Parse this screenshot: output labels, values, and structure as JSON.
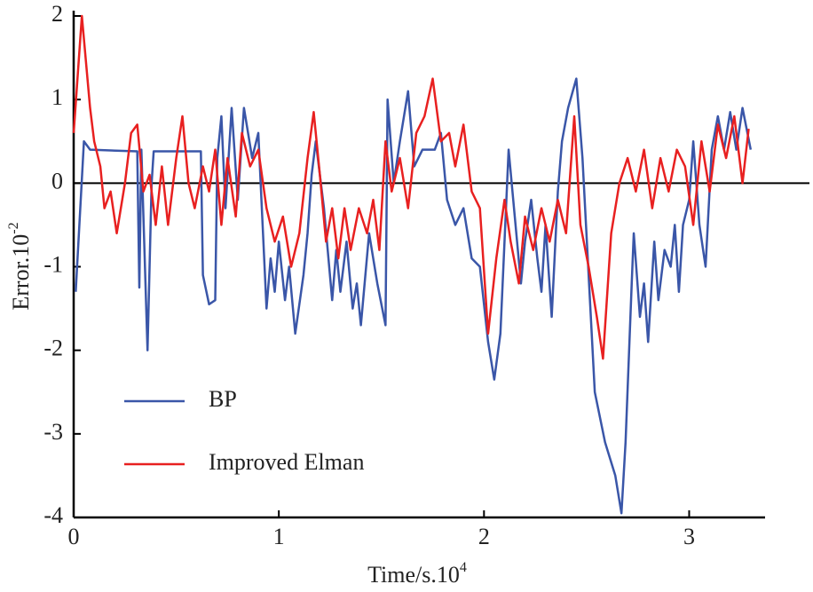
{
  "chart_data": {
    "type": "line",
    "xlabel": {
      "text": "Time/s.10",
      "exponent": "4"
    },
    "ylabel": {
      "text": "Error.10",
      "exponent": "-2"
    },
    "xlim": [
      0,
      3.37
    ],
    "ylim": [
      -4,
      2
    ],
    "xticks": [
      0,
      1,
      2,
      3
    ],
    "yticks": [
      -4,
      -3,
      -2,
      -1,
      0,
      1,
      2
    ],
    "zero_line": true,
    "grid": false,
    "legend": "lower left",
    "series": [
      {
        "name": "BP",
        "color": "#3a56a8",
        "x": [
          0.01,
          0.05,
          0.08,
          0.31,
          0.32,
          0.33,
          0.36,
          0.38,
          0.39,
          0.62,
          0.63,
          0.66,
          0.69,
          0.7,
          0.72,
          0.74,
          0.77,
          0.8,
          0.83,
          0.87,
          0.9,
          0.94,
          0.96,
          0.98,
          1.0,
          1.03,
          1.05,
          1.08,
          1.12,
          1.14,
          1.16,
          1.18,
          1.22,
          1.26,
          1.28,
          1.3,
          1.33,
          1.36,
          1.38,
          1.4,
          1.44,
          1.48,
          1.52,
          1.53,
          1.56,
          1.59,
          1.63,
          1.66,
          1.7,
          1.76,
          1.79,
          1.82,
          1.86,
          1.9,
          1.94,
          1.98,
          2.02,
          2.05,
          2.08,
          2.12,
          2.15,
          2.18,
          2.2,
          2.23,
          2.26,
          2.28,
          2.3,
          2.33,
          2.36,
          2.38,
          2.41,
          2.45,
          2.48,
          2.54,
          2.59,
          2.64,
          2.67,
          2.69,
          2.72,
          2.73,
          2.76,
          2.78,
          2.8,
          2.83,
          2.85,
          2.88,
          2.91,
          2.93,
          2.95,
          2.97,
          3.0,
          3.02,
          3.05,
          3.08,
          3.11,
          3.14,
          3.17,
          3.2,
          3.23,
          3.26,
          3.3
        ],
        "values": [
          -1.3,
          0.5,
          0.4,
          0.38,
          -1.25,
          0.4,
          -2.0,
          0,
          0.38,
          0.38,
          -1.1,
          -1.45,
          -1.4,
          0.3,
          0.8,
          -0.3,
          0.9,
          -0.2,
          0.9,
          0.3,
          0.6,
          -1.5,
          -0.9,
          -1.3,
          -0.7,
          -1.4,
          -1.0,
          -1.8,
          -1.1,
          -0.6,
          0.1,
          0.5,
          -0.3,
          -1.4,
          -0.8,
          -1.3,
          -0.7,
          -1.5,
          -1.2,
          -1.7,
          -0.6,
          -1.2,
          -1.7,
          1.0,
          0.0,
          0.5,
          1.1,
          0.2,
          0.4,
          0.4,
          0.6,
          -0.2,
          -0.5,
          -0.3,
          -0.9,
          -1.0,
          -1.9,
          -2.35,
          -1.8,
          0.4,
          -0.4,
          -1.2,
          -0.7,
          -0.2,
          -0.9,
          -1.3,
          -0.5,
          -1.6,
          -0.1,
          0.5,
          0.9,
          1.25,
          0.3,
          -2.5,
          -3.1,
          -3.5,
          -3.95,
          -3.1,
          -1.2,
          -0.6,
          -1.6,
          -1.2,
          -1.9,
          -0.7,
          -1.4,
          -0.8,
          -1.0,
          -0.5,
          -1.3,
          -0.5,
          -0.2,
          0.5,
          -0.5,
          -1.0,
          0.4,
          0.8,
          0.4,
          0.85,
          0.4,
          0.9,
          0.4
        ]
      },
      {
        "name": "Improved Elman",
        "color": "#e82020",
        "x": [
          0,
          0.04,
          0.08,
          0.1,
          0.13,
          0.15,
          0.18,
          0.21,
          0.25,
          0.28,
          0.31,
          0.34,
          0.37,
          0.4,
          0.43,
          0.46,
          0.5,
          0.53,
          0.56,
          0.59,
          0.63,
          0.66,
          0.69,
          0.72,
          0.75,
          0.79,
          0.82,
          0.86,
          0.9,
          0.94,
          0.98,
          1.02,
          1.06,
          1.1,
          1.14,
          1.17,
          1.2,
          1.23,
          1.26,
          1.29,
          1.32,
          1.35,
          1.39,
          1.43,
          1.46,
          1.49,
          1.52,
          1.55,
          1.59,
          1.63,
          1.67,
          1.71,
          1.75,
          1.79,
          1.83,
          1.86,
          1.9,
          1.94,
          1.98,
          2.02,
          2.06,
          2.1,
          2.13,
          2.17,
          2.2,
          2.24,
          2.28,
          2.32,
          2.36,
          2.4,
          2.44,
          2.47,
          2.51,
          2.55,
          2.58,
          2.62,
          2.66,
          2.7,
          2.74,
          2.78,
          2.82,
          2.86,
          2.9,
          2.94,
          2.98,
          3.02,
          3.06,
          3.1,
          3.14,
          3.18,
          3.22,
          3.26,
          3.29
        ],
        "values": [
          0.6,
          2.0,
          0.9,
          0.5,
          0.2,
          -0.3,
          -0.1,
          -0.6,
          0,
          0.6,
          0.7,
          -0.1,
          0.1,
          -0.5,
          0.2,
          -0.5,
          0.3,
          0.8,
          0,
          -0.3,
          0.2,
          -0.1,
          0.4,
          -0.5,
          0.3,
          -0.4,
          0.6,
          0.2,
          0.4,
          -0.3,
          -0.7,
          -0.4,
          -1.0,
          -0.6,
          0.3,
          0.85,
          0.1,
          -0.7,
          -0.3,
          -0.9,
          -0.3,
          -0.8,
          -0.3,
          -0.6,
          -0.2,
          -0.8,
          0.5,
          -0.1,
          0.3,
          -0.3,
          0.6,
          0.8,
          1.25,
          0.5,
          0.6,
          0.2,
          0.7,
          -0.1,
          -0.3,
          -1.8,
          -0.9,
          -0.2,
          -0.7,
          -1.2,
          -0.4,
          -0.8,
          -0.3,
          -0.7,
          -0.2,
          -0.6,
          0.8,
          -0.5,
          -1.0,
          -1.6,
          -2.1,
          -0.6,
          0,
          0.3,
          -0.1,
          0.4,
          -0.3,
          0.3,
          -0.1,
          0.4,
          0.2,
          -0.5,
          0.5,
          -0.1,
          0.7,
          0.3,
          0.8,
          0,
          0.65
        ]
      }
    ]
  }
}
